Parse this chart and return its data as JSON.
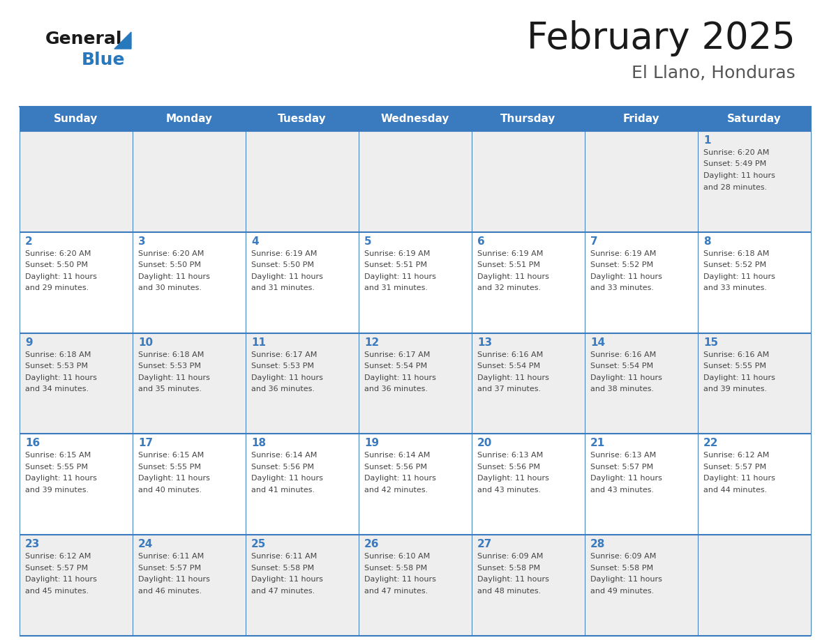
{
  "title": "February 2025",
  "subtitle": "El Llano, Honduras",
  "days_of_week": [
    "Sunday",
    "Monday",
    "Tuesday",
    "Wednesday",
    "Thursday",
    "Friday",
    "Saturday"
  ],
  "header_bg": "#3a7abf",
  "header_text_color": "#ffffff",
  "row_colors": [
    "#eeeeee",
    "#ffffff",
    "#eeeeee",
    "#ffffff",
    "#eeeeee"
  ],
  "cell_text_color": "#444444",
  "day_num_color": "#3a7abf",
  "border_color": "#3a7abf",
  "title_color": "#1a1a1a",
  "subtitle_color": "#555555",
  "calendar_data": [
    [
      null,
      null,
      null,
      null,
      null,
      null,
      {
        "day": 1,
        "sunrise": "6:20 AM",
        "sunset": "5:49 PM",
        "daylight_l1": "Daylight: 11 hours",
        "daylight_l2": "and 28 minutes."
      }
    ],
    [
      {
        "day": 2,
        "sunrise": "6:20 AM",
        "sunset": "5:50 PM",
        "daylight_l1": "Daylight: 11 hours",
        "daylight_l2": "and 29 minutes."
      },
      {
        "day": 3,
        "sunrise": "6:20 AM",
        "sunset": "5:50 PM",
        "daylight_l1": "Daylight: 11 hours",
        "daylight_l2": "and 30 minutes."
      },
      {
        "day": 4,
        "sunrise": "6:19 AM",
        "sunset": "5:50 PM",
        "daylight_l1": "Daylight: 11 hours",
        "daylight_l2": "and 31 minutes."
      },
      {
        "day": 5,
        "sunrise": "6:19 AM",
        "sunset": "5:51 PM",
        "daylight_l1": "Daylight: 11 hours",
        "daylight_l2": "and 31 minutes."
      },
      {
        "day": 6,
        "sunrise": "6:19 AM",
        "sunset": "5:51 PM",
        "daylight_l1": "Daylight: 11 hours",
        "daylight_l2": "and 32 minutes."
      },
      {
        "day": 7,
        "sunrise": "6:19 AM",
        "sunset": "5:52 PM",
        "daylight_l1": "Daylight: 11 hours",
        "daylight_l2": "and 33 minutes."
      },
      {
        "day": 8,
        "sunrise": "6:18 AM",
        "sunset": "5:52 PM",
        "daylight_l1": "Daylight: 11 hours",
        "daylight_l2": "and 33 minutes."
      }
    ],
    [
      {
        "day": 9,
        "sunrise": "6:18 AM",
        "sunset": "5:53 PM",
        "daylight_l1": "Daylight: 11 hours",
        "daylight_l2": "and 34 minutes."
      },
      {
        "day": 10,
        "sunrise": "6:18 AM",
        "sunset": "5:53 PM",
        "daylight_l1": "Daylight: 11 hours",
        "daylight_l2": "and 35 minutes."
      },
      {
        "day": 11,
        "sunrise": "6:17 AM",
        "sunset": "5:53 PM",
        "daylight_l1": "Daylight: 11 hours",
        "daylight_l2": "and 36 minutes."
      },
      {
        "day": 12,
        "sunrise": "6:17 AM",
        "sunset": "5:54 PM",
        "daylight_l1": "Daylight: 11 hours",
        "daylight_l2": "and 36 minutes."
      },
      {
        "day": 13,
        "sunrise": "6:16 AM",
        "sunset": "5:54 PM",
        "daylight_l1": "Daylight: 11 hours",
        "daylight_l2": "and 37 minutes."
      },
      {
        "day": 14,
        "sunrise": "6:16 AM",
        "sunset": "5:54 PM",
        "daylight_l1": "Daylight: 11 hours",
        "daylight_l2": "and 38 minutes."
      },
      {
        "day": 15,
        "sunrise": "6:16 AM",
        "sunset": "5:55 PM",
        "daylight_l1": "Daylight: 11 hours",
        "daylight_l2": "and 39 minutes."
      }
    ],
    [
      {
        "day": 16,
        "sunrise": "6:15 AM",
        "sunset": "5:55 PM",
        "daylight_l1": "Daylight: 11 hours",
        "daylight_l2": "and 39 minutes."
      },
      {
        "day": 17,
        "sunrise": "6:15 AM",
        "sunset": "5:55 PM",
        "daylight_l1": "Daylight: 11 hours",
        "daylight_l2": "and 40 minutes."
      },
      {
        "day": 18,
        "sunrise": "6:14 AM",
        "sunset": "5:56 PM",
        "daylight_l1": "Daylight: 11 hours",
        "daylight_l2": "and 41 minutes."
      },
      {
        "day": 19,
        "sunrise": "6:14 AM",
        "sunset": "5:56 PM",
        "daylight_l1": "Daylight: 11 hours",
        "daylight_l2": "and 42 minutes."
      },
      {
        "day": 20,
        "sunrise": "6:13 AM",
        "sunset": "5:56 PM",
        "daylight_l1": "Daylight: 11 hours",
        "daylight_l2": "and 43 minutes."
      },
      {
        "day": 21,
        "sunrise": "6:13 AM",
        "sunset": "5:57 PM",
        "daylight_l1": "Daylight: 11 hours",
        "daylight_l2": "and 43 minutes."
      },
      {
        "day": 22,
        "sunrise": "6:12 AM",
        "sunset": "5:57 PM",
        "daylight_l1": "Daylight: 11 hours",
        "daylight_l2": "and 44 minutes."
      }
    ],
    [
      {
        "day": 23,
        "sunrise": "6:12 AM",
        "sunset": "5:57 PM",
        "daylight_l1": "Daylight: 11 hours",
        "daylight_l2": "and 45 minutes."
      },
      {
        "day": 24,
        "sunrise": "6:11 AM",
        "sunset": "5:57 PM",
        "daylight_l1": "Daylight: 11 hours",
        "daylight_l2": "and 46 minutes."
      },
      {
        "day": 25,
        "sunrise": "6:11 AM",
        "sunset": "5:58 PM",
        "daylight_l1": "Daylight: 11 hours",
        "daylight_l2": "and 47 minutes."
      },
      {
        "day": 26,
        "sunrise": "6:10 AM",
        "sunset": "5:58 PM",
        "daylight_l1": "Daylight: 11 hours",
        "daylight_l2": "and 47 minutes."
      },
      {
        "day": 27,
        "sunrise": "6:09 AM",
        "sunset": "5:58 PM",
        "daylight_l1": "Daylight: 11 hours",
        "daylight_l2": "and 48 minutes."
      },
      {
        "day": 28,
        "sunrise": "6:09 AM",
        "sunset": "5:58 PM",
        "daylight_l1": "Daylight: 11 hours",
        "daylight_l2": "and 49 minutes."
      },
      null
    ]
  ],
  "logo_general_color": "#1a1a1a",
  "logo_blue_color": "#2878be",
  "logo_triangle_color": "#2878be"
}
